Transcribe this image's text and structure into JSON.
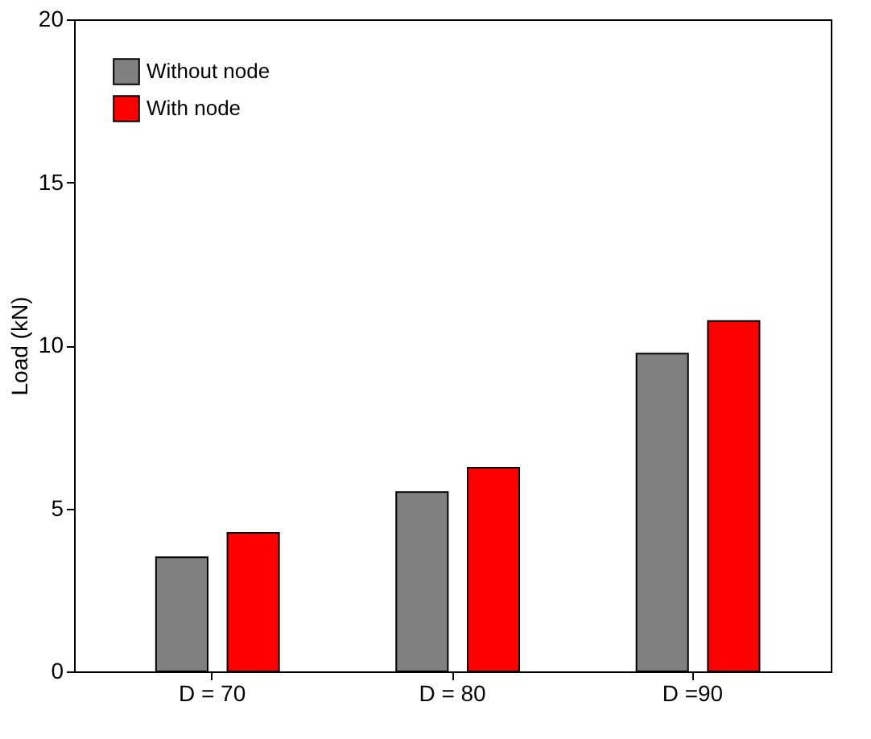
{
  "chart_data": {
    "type": "bar",
    "ylabel": "Load (kN)",
    "categories": [
      "D = 70",
      "D = 80",
      "D =90"
    ],
    "series": [
      {
        "name": "Without node",
        "color": "#808080",
        "values": [
          3.5,
          5.5,
          9.75
        ]
      },
      {
        "name": "With node",
        "color": "#ff0000",
        "values": [
          4.25,
          6.25,
          10.75
        ]
      }
    ],
    "ylim": [
      0,
      20
    ],
    "yticks": [
      0,
      5,
      10,
      15,
      20
    ],
    "grid": false,
    "legend": "top left"
  }
}
